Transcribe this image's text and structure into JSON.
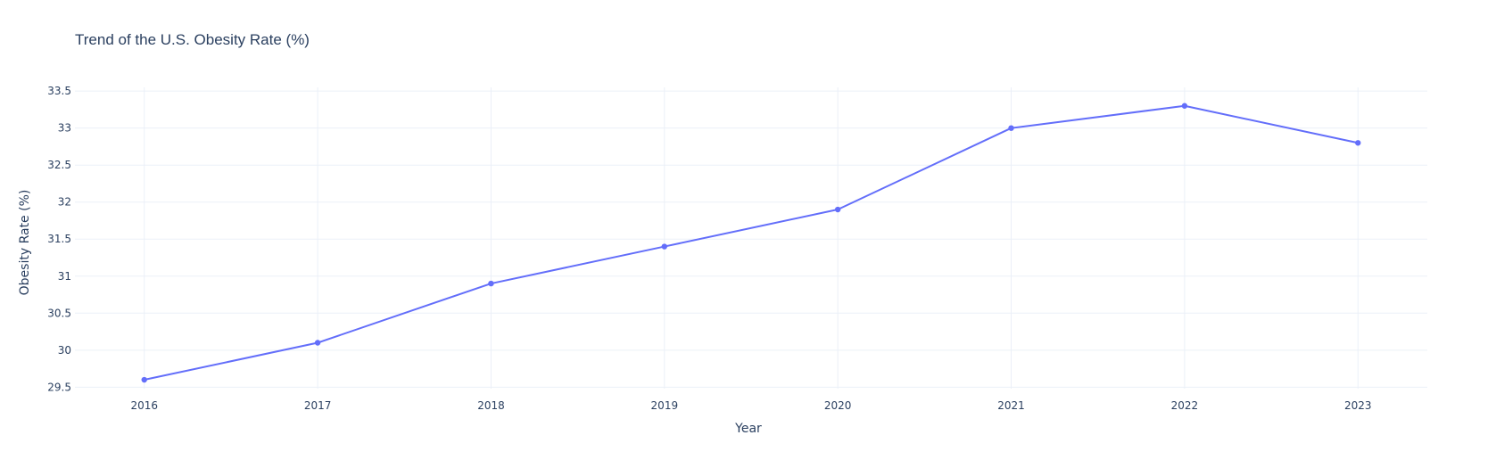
{
  "chart_data": {
    "type": "line",
    "title": "Trend of the U.S. Obesity Rate (%)",
    "xlabel": "Year",
    "ylabel": "Obesity Rate (%)",
    "x": [
      2016,
      2017,
      2018,
      2019,
      2020,
      2021,
      2022,
      2023
    ],
    "series": [
      {
        "values": [
          29.6,
          30.1,
          30.9,
          31.4,
          31.9,
          33.0,
          33.3,
          32.8
        ]
      }
    ],
    "x_ticks": [
      "2016",
      "2017",
      "2018",
      "2019",
      "2020",
      "2021",
      "2022",
      "2023"
    ],
    "y_tick_values": [
      29.5,
      30,
      30.5,
      31,
      31.5,
      32,
      32.5,
      33,
      33.5
    ],
    "y_ticks": [
      "29.5",
      "30",
      "30.5",
      "31",
      "31.5",
      "32",
      "32.5",
      "33",
      "33.5"
    ],
    "xlim": [
      2015.6,
      2023.4
    ],
    "ylim": [
      29.48,
      33.55
    ],
    "grid": true,
    "legend": false,
    "line_color": "#636efa"
  }
}
